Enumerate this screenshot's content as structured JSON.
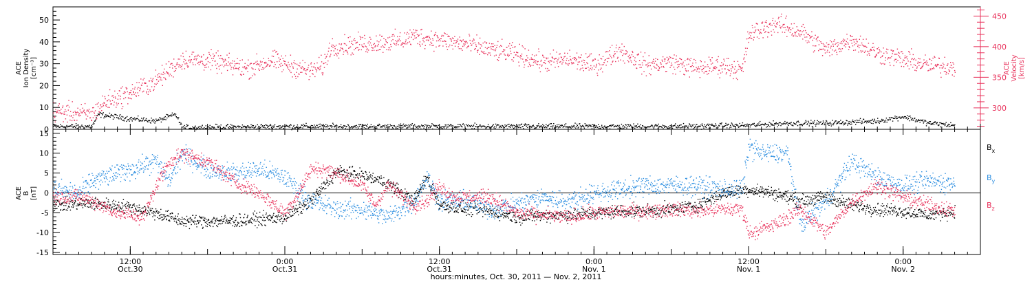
{
  "chart_data": [
    {
      "type": "scatter",
      "panel": "top",
      "ylabel_left": [
        "ACE",
        "Ion Density",
        "[cm⁻³]"
      ],
      "ylabel_right": [
        "ACE",
        "Velocity",
        "[km/s]"
      ],
      "left_ylim": [
        0,
        56
      ],
      "left_yticks": [
        0,
        10,
        20,
        30,
        40,
        50
      ],
      "right_ylim": [
        265,
        465
      ],
      "right_yticks": [
        300,
        350,
        400,
        450
      ],
      "xlim": [
        6.0,
        78.0
      ],
      "grid": false,
      "colors": {
        "density": "#000000",
        "velocity": "#e8305a"
      },
      "series": [
        {
          "key": "density",
          "axis": "left",
          "noise": 0.6,
          "x": [
            6,
            9,
            9.5,
            12,
            14,
            15.5,
            16,
            24,
            36,
            44,
            54,
            60,
            63,
            66,
            70,
            72,
            74,
            76
          ],
          "y": [
            1.5,
            1.5,
            7,
            5,
            4,
            7,
            1,
            1.5,
            1.5,
            1.5,
            1.5,
            2,
            3,
            3,
            4,
            6,
            3,
            2
          ]
        },
        {
          "key": "velocity",
          "axis": "right",
          "noise": 8,
          "x": [
            6,
            9,
            10,
            12,
            14,
            16,
            18,
            21,
            23,
            26,
            27,
            27.5,
            30,
            33,
            34,
            38,
            40,
            42,
            44,
            46,
            48,
            50,
            52,
            54,
            56,
            58,
            59.5,
            60,
            62,
            64,
            66,
            68,
            70,
            72,
            74,
            76
          ],
          "y": [
            295,
            290,
            310,
            325,
            345,
            380,
            378,
            365,
            378,
            360,
            370,
            400,
            405,
            410,
            418,
            405,
            395,
            388,
            375,
            380,
            370,
            395,
            370,
            375,
            365,
            370,
            362,
            420,
            438,
            425,
            395,
            412,
            390,
            380,
            370,
            368
          ]
        }
      ]
    },
    {
      "type": "scatter",
      "panel": "bottom",
      "ylabel_left": [
        "ACE",
        "B",
        "[nT]"
      ],
      "ylim": [
        -15.5,
        16
      ],
      "yticks": [
        -15,
        -10,
        -5,
        0,
        5,
        10,
        15
      ],
      "xlim": [
        6.0,
        78.0
      ],
      "zero_line": true,
      "grid": false,
      "legend": {
        "placement": "right",
        "entries": [
          {
            "text": "B",
            "sub": "x",
            "color": "#000000"
          },
          {
            "text": "B",
            "sub": "y",
            "color": "#2a8de0"
          },
          {
            "text": "B",
            "sub": "z",
            "color": "#e8305a"
          }
        ]
      },
      "series": [
        {
          "key": "Bx",
          "color": "#000000",
          "noise": 0.8,
          "x": [
            6,
            9,
            12,
            14,
            16,
            20,
            24,
            26,
            28,
            30,
            32,
            34,
            35,
            36,
            38,
            40,
            42,
            44,
            46,
            48,
            50,
            52,
            54,
            56,
            58,
            60,
            62,
            64,
            66,
            68,
            70,
            72,
            74,
            76
          ],
          "y": [
            -3,
            -2.5,
            -3.5,
            -5,
            -7,
            -7,
            -6,
            -2,
            5.5,
            4.5,
            2.5,
            -2,
            4,
            -3,
            -4,
            -4.5,
            -6,
            -5.5,
            -5.5,
            -5,
            -4.5,
            -4.5,
            -4,
            -3,
            0,
            1,
            0,
            -2,
            -1,
            -3,
            -4,
            -4.5,
            -5.5,
            -4.5
          ]
        },
        {
          "key": "By",
          "color": "#2a8de0",
          "noise": 1.2,
          "x": [
            6,
            8,
            9,
            10,
            12,
            14,
            15,
            16,
            18,
            20,
            22,
            24,
            26,
            28,
            30,
            32,
            34,
            35,
            36,
            38,
            40,
            42,
            44,
            46,
            48,
            50,
            52,
            54,
            56,
            58,
            59.5,
            60,
            61,
            62,
            63,
            64,
            66,
            68,
            70,
            72,
            74,
            76
          ],
          "y": [
            1,
            0,
            3,
            4,
            6,
            8,
            3,
            10,
            6,
            5,
            6,
            4,
            -2,
            -4,
            -4,
            -6,
            -2,
            4,
            -2,
            -2,
            -4,
            -2.5,
            -1,
            -2,
            0,
            1,
            2,
            2,
            2,
            1,
            1,
            12,
            10,
            10,
            10,
            -8,
            -2,
            8,
            4,
            2,
            3,
            2.5
          ]
        },
        {
          "key": "Bz",
          "color": "#e8305a",
          "noise": 0.9,
          "x": [
            6,
            8,
            9,
            11,
            13,
            14,
            15,
            16,
            18,
            20,
            22,
            24,
            25,
            26,
            27,
            28,
            30,
            31,
            32,
            34,
            35,
            36,
            37,
            38,
            40,
            42,
            44,
            46,
            48,
            50,
            52,
            54,
            56,
            58,
            59.5,
            60,
            62,
            64,
            66,
            68,
            70,
            72,
            74,
            76
          ],
          "y": [
            -1,
            -1,
            -2,
            -5,
            -6,
            2,
            8,
            10,
            8,
            3,
            0,
            -5,
            0,
            6,
            6,
            5,
            2,
            -3,
            2,
            -3,
            -2,
            2,
            -1,
            -1,
            -1,
            -5,
            -5.5,
            -6,
            -5,
            -4.5,
            -4.5,
            -4,
            -4.5,
            -4,
            -4,
            -10,
            -8,
            -4,
            -10,
            -2,
            2,
            -1,
            -3,
            -4.5
          ]
        }
      ]
    }
  ],
  "x_axis": {
    "ticks": [
      {
        "t": 12,
        "label1": "12:00",
        "label2": "Oct.30"
      },
      {
        "t": 24,
        "label1": "0:00",
        "label2": "Oct.31"
      },
      {
        "t": 36,
        "label1": "12:00",
        "label2": "Oct.31"
      },
      {
        "t": 48,
        "label1": "0:00",
        "label2": "Nov. 1"
      },
      {
        "t": 60,
        "label1": "12:00",
        "label2": "Nov. 1"
      },
      {
        "t": 72,
        "label1": "0:00",
        "label2": "Nov. 2"
      }
    ],
    "xlabel": "hours:minutes, Oct. 30, 2011 — Nov.  2, 2011"
  }
}
